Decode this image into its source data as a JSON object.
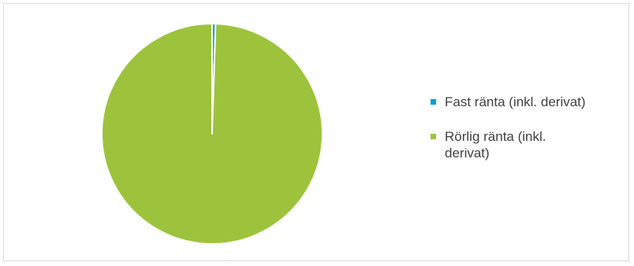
{
  "chart_data": {
    "type": "pie",
    "title": "",
    "slices": [
      {
        "label": "Fast ränta (inkl. derivat)",
        "value": 0.5,
        "color": "#00a0dc"
      },
      {
        "label": "Rörlig ränta (inkl. derivat)",
        "value": 99.5,
        "color": "#9dc33c"
      }
    ],
    "legend_position": "right",
    "slice_separator_color": "#ffffff"
  },
  "legend": {
    "items": [
      {
        "label": "Fast ränta (inkl. derivat)",
        "color": "#00a0dc"
      },
      {
        "label": "Rörlig ränta (inkl. derivat)",
        "color": "#9dc33c"
      }
    ]
  }
}
